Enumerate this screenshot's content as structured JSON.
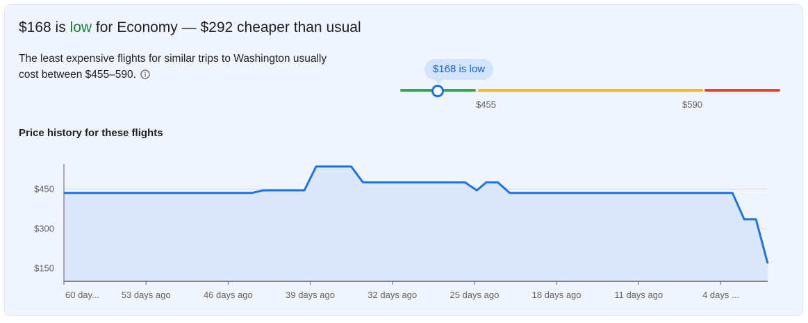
{
  "insight": {
    "price": "$168",
    "is_text": " is ",
    "level": "low",
    "rest": " for Economy — $292 cheaper than usual",
    "description": "The least expensive flights for similar trips to Washington usually cost between $455–590."
  },
  "range": {
    "tooltip": "$168 is low",
    "low_label": "$455",
    "high_label": "$590",
    "current_price": 168,
    "typical_low": 455,
    "typical_high": 590,
    "colors": {
      "low": "#34a853",
      "typical": "#fbbc04",
      "high": "#ea4335",
      "marker": "#1a73e8"
    }
  },
  "history": {
    "title": "Price history for these flights"
  },
  "chart_data": {
    "type": "area",
    "title": "Price history for these flights",
    "xlabel": "",
    "ylabel": "",
    "ylim": [
      100,
      545
    ],
    "y_ticks": [
      {
        "value": 150,
        "label": "$150"
      },
      {
        "value": 300,
        "label": "$300"
      },
      {
        "value": 450,
        "label": "$450"
      }
    ],
    "x_ticks": [
      {
        "value": -60,
        "label": "60 day..."
      },
      {
        "value": -53,
        "label": "53 days ago"
      },
      {
        "value": -46,
        "label": "46 days ago"
      },
      {
        "value": -39,
        "label": "39 days ago"
      },
      {
        "value": -32,
        "label": "32 days ago"
      },
      {
        "value": -25,
        "label": "25 days ago"
      },
      {
        "value": -18,
        "label": "18 days ago"
      },
      {
        "value": -11,
        "label": "11 days ago"
      },
      {
        "value": -4,
        "label": "4 days ..."
      }
    ],
    "xlim": [
      -60,
      0
    ],
    "grid": true,
    "line_color": "#1a73e8",
    "fill_color": "#dde7fb",
    "series": [
      {
        "x": [
          -60,
          -44,
          -43,
          -39.5,
          -38.5,
          -35.5,
          -34.5,
          -25.8,
          -24.8,
          -24,
          -23,
          -22,
          -13,
          -3,
          -2,
          -1,
          0
        ],
        "y": [
          435,
          435,
          445,
          445,
          535,
          535,
          475,
          475,
          445,
          475,
          475,
          435,
          435,
          435,
          335,
          335,
          168
        ]
      }
    ]
  }
}
